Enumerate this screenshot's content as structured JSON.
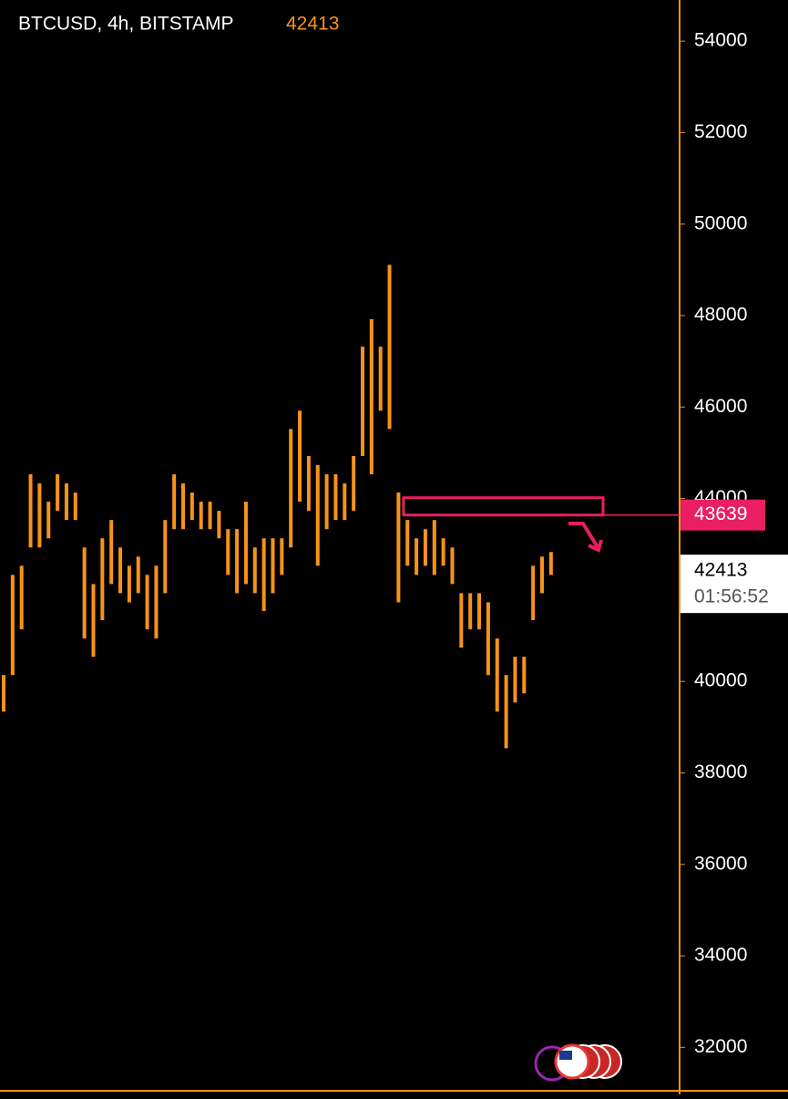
{
  "chart_data": {
    "type": "range",
    "title": "BTCUSD, 4h, BITSTAMP",
    "last_price": 42413,
    "countdown": "01:56:52",
    "alert_price": 43639,
    "color": "#f7931a",
    "alert_color": "#e91e63",
    "ylim": [
      31050,
      54900
    ],
    "yticks": [
      32000,
      34000,
      36000,
      38000,
      40000,
      42000,
      44000,
      46000,
      48000,
      50000,
      52000,
      54000
    ],
    "low": [
      39340,
      40140,
      41140,
      42930,
      42930,
      43130,
      43730,
      43530,
      43530,
      40940,
      40540,
      41340,
      42130,
      41930,
      41730,
      41930,
      41140,
      40940,
      41930,
      43330,
      43330,
      43530,
      43330,
      43330,
      43130,
      42330,
      41930,
      42130,
      41930,
      41540,
      41930,
      42330,
      42930,
      43930,
      43730,
      42530,
      43330,
      43530,
      43530,
      43730,
      44930,
      44530,
      45920,
      45520,
      41730,
      42530,
      42330,
      42530,
      42330,
      42530,
      42130,
      40740,
      41140,
      41140,
      40140,
      39340,
      38540,
      39540,
      39740,
      41340,
      41930,
      42330
    ],
    "high": [
      40140,
      42330,
      42530,
      44530,
      44330,
      43930,
      44530,
      44330,
      44130,
      42930,
      42130,
      43130,
      43530,
      42930,
      42530,
      42730,
      42330,
      42530,
      43530,
      44530,
      44330,
      44130,
      43930,
      43930,
      43730,
      43330,
      43330,
      43930,
      42930,
      43130,
      43130,
      43130,
      45520,
      45920,
      44930,
      44730,
      44530,
      44530,
      44330,
      44930,
      47320,
      47920,
      47320,
      49110,
      44130,
      43530,
      43130,
      43330,
      43530,
      43130,
      42930,
      41930,
      41930,
      41930,
      41730,
      40940,
      40140,
      40540,
      40540,
      42530,
      42730,
      42830
    ]
  }
}
